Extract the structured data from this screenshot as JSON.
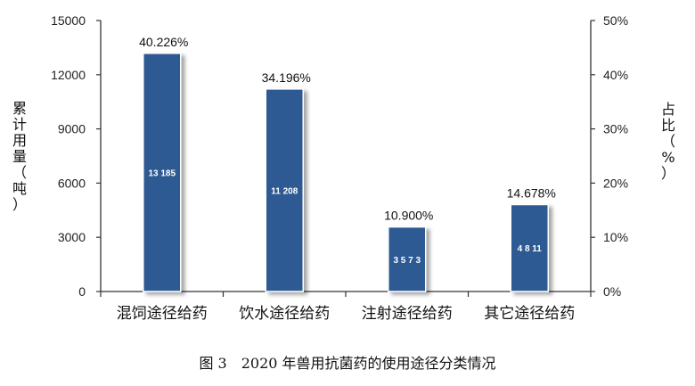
{
  "chart_data": {
    "type": "bar",
    "caption": "图 3　2020 年兽用抗菌药的使用途径分类情况",
    "categories": [
      "混饲途径给药",
      "饮水途径给药",
      "注射途径给药",
      "其它途径给药"
    ],
    "values": [
      13185,
      11208,
      3573,
      4811
    ],
    "value_labels": [
      "13 185",
      "11 208",
      "3 5 7 3",
      "4 8 11"
    ],
    "percent_labels": [
      "40.226%",
      "34.196%",
      "10.900%",
      "14.678%"
    ],
    "ylabel_left": "累计用量（吨）",
    "ylabel_right": "占比（%）",
    "ylim_left": [
      0,
      15000
    ],
    "yticks_left": [
      "0",
      "3000",
      "6000",
      "9000",
      "12000",
      "15000"
    ],
    "ylim_right": [
      0,
      50
    ],
    "yticks_right": [
      "0%",
      "10%",
      "20%",
      "30%",
      "40%",
      "50%"
    ],
    "bar_color": "#2f5a93",
    "grid": false,
    "legend": "none"
  }
}
